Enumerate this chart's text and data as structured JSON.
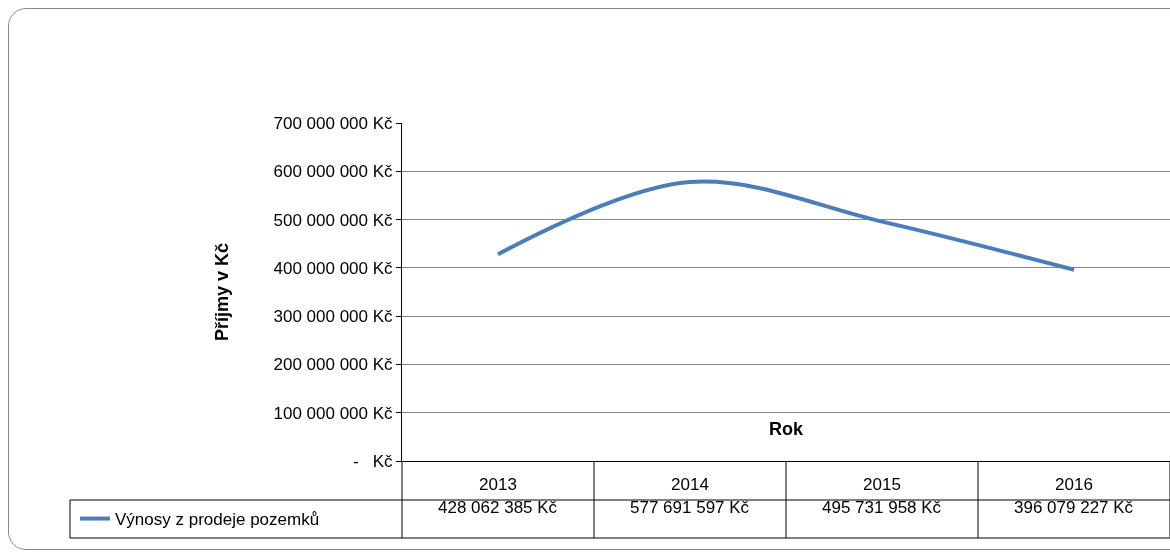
{
  "chart_data": {
    "type": "line",
    "xlabel": "Rok",
    "ylabel": "Příjmy v Kč",
    "categories": [
      "2013",
      "2014",
      "2015",
      "2016"
    ],
    "series": [
      {
        "name": "Výnosy z prodeje pozemků",
        "color": "#4a7ebb",
        "values": [
          428062385,
          577691597,
          495731958,
          396079227
        ],
        "value_labels": [
          "428 062 385 Kč",
          "577 691 597 Kč",
          "495 731 958 Kč",
          "396 079 227 Kč"
        ]
      }
    ],
    "ylim": [
      0,
      700000000
    ],
    "yticks": [
      {
        "value": 0,
        "label": "-   Kč"
      },
      {
        "value": 100000000,
        "label": "100 000 000 Kč"
      },
      {
        "value": 200000000,
        "label": "200 000 000 Kč"
      },
      {
        "value": 300000000,
        "label": "300 000 000 Kč"
      },
      {
        "value": 400000000,
        "label": "400 000 000 Kč"
      },
      {
        "value": 500000000,
        "label": "500 000 000 Kč"
      },
      {
        "value": 600000000,
        "label": "600 000 000 Kč"
      },
      {
        "value": 700000000,
        "label": "700 000 000 Kč"
      }
    ],
    "grid": "y",
    "legend": "bottom left",
    "marker": "none",
    "line_style": "solid"
  }
}
